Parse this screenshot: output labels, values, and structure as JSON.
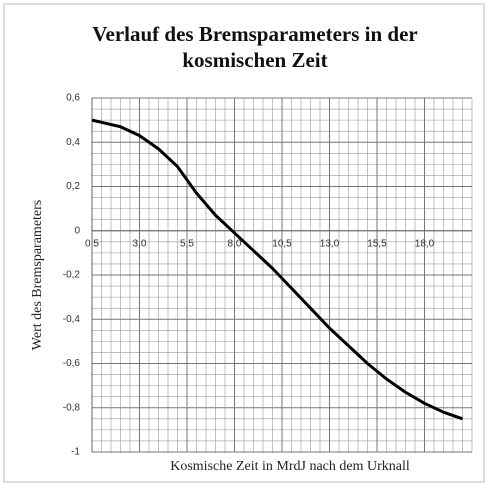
{
  "chart_data": {
    "type": "line",
    "title": "Verlauf des Bremsparameters in der kosmischen Zeit",
    "title_lines": [
      "Verlauf des Bremsparameters in der",
      "kosmischen Zeit"
    ],
    "x_label": "Kosmische Zeit in MrdJ nach dem Urknall",
    "y_label": "Wert des Bremsparameters",
    "x": [
      0.5,
      1,
      2,
      3,
      4,
      5,
      6,
      7,
      8,
      9,
      10,
      11,
      12,
      13,
      14,
      15,
      16,
      17,
      18,
      19,
      20
    ],
    "series": [
      {
        "name": "Bremsparameter",
        "color": "#000000",
        "values": [
          0.5,
          0.49,
          0.47,
          0.43,
          0.37,
          0.29,
          0.17,
          0.07,
          -0.01,
          -0.09,
          -0.17,
          -0.26,
          -0.35,
          -0.44,
          -0.52,
          -0.6,
          -0.67,
          -0.73,
          -0.78,
          -0.82,
          -0.85
        ]
      }
    ],
    "xlim": [
      0.5,
      20.5
    ],
    "ylim": [
      -1,
      0.6
    ],
    "xticks": [
      {
        "value": 0.5,
        "label": "0,5"
      },
      {
        "value": 3.0,
        "label": "3,0"
      },
      {
        "value": 5.5,
        "label": "5,5"
      },
      {
        "value": 8.0,
        "label": "8,0"
      },
      {
        "value": 10.5,
        "label": "10,5"
      },
      {
        "value": 13.0,
        "label": "13,0"
      },
      {
        "value": 15.5,
        "label": "15,5"
      },
      {
        "value": 18.0,
        "label": "18,0"
      }
    ],
    "yticks": [
      {
        "value": 0.6,
        "label": "0,6"
      },
      {
        "value": 0.4,
        "label": "0,4"
      },
      {
        "value": 0.2,
        "label": "0,2"
      },
      0,
      {
        "value": -0.2,
        "label": "-0,2"
      },
      {
        "value": -0.4,
        "label": "-0,4"
      },
      {
        "value": -0.6,
        "label": "-0,6"
      },
      {
        "value": -0.8,
        "label": "-0,8"
      },
      -1
    ],
    "grid": true,
    "minor_grid": true
  }
}
